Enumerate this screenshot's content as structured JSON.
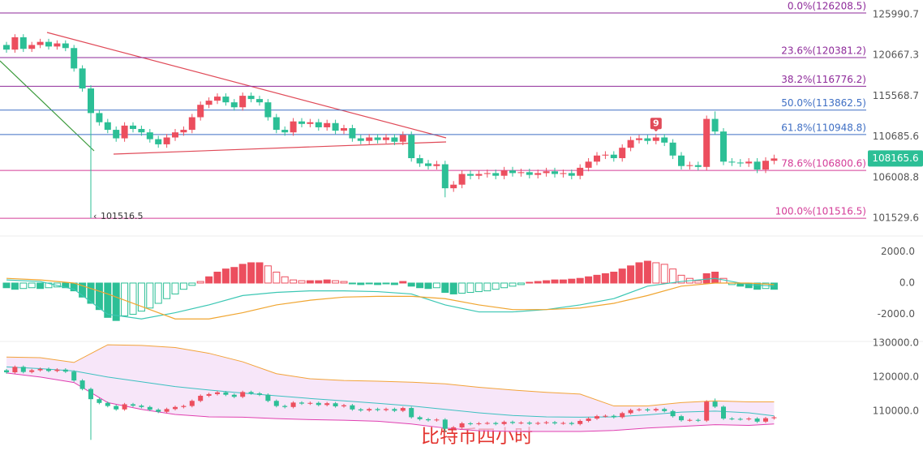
{
  "chart_data": [
    {
      "type": "candlestick",
      "log": true,
      "ylim": [
        99710,
        127960
      ],
      "yticks": [
        125990.7,
        120667.3,
        115568.7,
        110685.6,
        106008.8,
        101529.6
      ],
      "up_color": "#ec4e5e",
      "down_color": "#2cbf96",
      "open": [
        122000,
        121400,
        123000,
        121500,
        122000,
        122400,
        121800,
        122200,
        121600,
        119000,
        116500,
        113500,
        112400,
        111500,
        110500,
        112000,
        111600,
        111200,
        110400,
        109800,
        110600,
        111200,
        111500,
        113000,
        114500,
        115000,
        115500,
        114800,
        114200,
        115600,
        115200,
        114800,
        113000,
        111500,
        111200,
        112500,
        112200,
        112400,
        111800,
        112300,
        111400,
        111700,
        110500,
        110200,
        110600,
        110300,
        110600,
        110100,
        110900,
        108200,
        107600,
        107300,
        107500,
        104800,
        105200,
        106400,
        106200,
        106400,
        106500,
        106200,
        106800,
        106500,
        106600,
        106300,
        106500,
        106700,
        106400,
        106500,
        106200,
        107100,
        107800,
        108500,
        108600,
        108200,
        109400,
        110300,
        110500,
        110200,
        110600,
        110000,
        108500,
        107300,
        107400,
        107200,
        112800,
        111300,
        107800,
        107700,
        107600,
        107800,
        106900,
        107900
      ],
      "high": [
        122400,
        123400,
        123400,
        122400,
        122800,
        122800,
        122600,
        122600,
        122000,
        119400,
        116900,
        113900,
        112800,
        111900,
        112400,
        112400,
        112000,
        111600,
        110800,
        111000,
        111600,
        111900,
        113400,
        114900,
        115400,
        115900,
        115900,
        115200,
        116000,
        116000,
        115600,
        115200,
        113400,
        111900,
        112900,
        112900,
        112800,
        112800,
        112700,
        112700,
        112100,
        112100,
        110900,
        111000,
        111000,
        111000,
        111000,
        111300,
        111300,
        108600,
        108000,
        107900,
        107900,
        105600,
        106800,
        106800,
        106800,
        106900,
        106900,
        107200,
        107200,
        107000,
        107000,
        106900,
        107100,
        107100,
        106900,
        106900,
        107500,
        108200,
        108900,
        109000,
        109000,
        109800,
        110700,
        110900,
        110900,
        111000,
        111000,
        110400,
        108900,
        107800,
        107800,
        113200,
        113700,
        111700,
        108200,
        108100,
        108200,
        108200,
        108300,
        108600
      ],
      "low": [
        121000,
        121000,
        121100,
        121100,
        121600,
        121400,
        121400,
        121200,
        118600,
        116100,
        101516.5,
        112000,
        111100,
        110100,
        110100,
        111200,
        110800,
        110000,
        109400,
        109400,
        110200,
        110800,
        111100,
        112600,
        114100,
        114600,
        114400,
        113800,
        113800,
        114800,
        114400,
        112600,
        111100,
        110800,
        110800,
        111800,
        111800,
        111400,
        111400,
        111000,
        111000,
        110100,
        109800,
        109800,
        109900,
        109900,
        109700,
        109700,
        107800,
        107200,
        106900,
        106900,
        103800,
        104400,
        104800,
        105800,
        105800,
        106000,
        105800,
        105800,
        106100,
        106100,
        105900,
        105900,
        106100,
        106000,
        106000,
        105800,
        105800,
        106700,
        107400,
        108100,
        107800,
        107800,
        109000,
        109900,
        109800,
        109800,
        109600,
        108100,
        106900,
        106900,
        106800,
        106800,
        110900,
        107400,
        107300,
        107200,
        107200,
        106500,
        106500,
        107500
      ],
      "close": [
        121400,
        123000,
        121500,
        122000,
        122400,
        121800,
        122200,
        121600,
        119000,
        116500,
        113500,
        112400,
        111500,
        110500,
        112000,
        111600,
        111200,
        110400,
        109800,
        110600,
        111200,
        111500,
        113000,
        114500,
        115000,
        115500,
        114800,
        114200,
        115600,
        115200,
        114800,
        113000,
        111500,
        111200,
        112500,
        112200,
        112400,
        111800,
        112300,
        111400,
        111700,
        110500,
        110200,
        110600,
        110300,
        110600,
        110100,
        110900,
        108200,
        107600,
        107300,
        107500,
        104800,
        105200,
        106400,
        106200,
        106400,
        106500,
        106200,
        106800,
        106500,
        106600,
        106300,
        106500,
        106700,
        106400,
        106500,
        106200,
        107100,
        107800,
        108500,
        108600,
        108200,
        109400,
        110300,
        110500,
        110200,
        110600,
        110000,
        108500,
        107300,
        107400,
        107200,
        112800,
        111300,
        107800,
        107700,
        107600,
        107800,
        106900,
        107900,
        108165.6
      ],
      "fib_levels": [
        {
          "label": "0.0%(126208.5)",
          "value": 126208.5,
          "color": "#8e2a9a"
        },
        {
          "label": "23.6%(120381.2)",
          "value": 120381.2,
          "color": "#8e2a9a"
        },
        {
          "label": "38.2%(116776.2)",
          "value": 116776.2,
          "color": "#8e2a9a"
        },
        {
          "label": "50.0%(113862.5)",
          "value": 113862.5,
          "color": "#3f6fc4"
        },
        {
          "label": "61.8%(110948.8)",
          "value": 110948.8,
          "color": "#3f6fc4"
        },
        {
          "label": "78.6%(106800.6)",
          "value": 106800.6,
          "color": "#d43c98"
        },
        {
          "label": "100.0%(101516.5)",
          "value": 101516.5,
          "color": "#d43c98"
        }
      ],
      "signal": {
        "label": "9",
        "at": 77
      },
      "watermark": "比特币四小时"
    },
    {
      "type": "macd",
      "ylim": [
        -3690,
        2545
      ],
      "yticks": [
        {
          "value": 2000,
          "label": "2000.0"
        },
        {
          "value": 0,
          "label": "0.0"
        },
        {
          "value": -2000,
          "label": "-2000.0"
        }
      ],
      "hist": [
        -300,
        -400,
        -350,
        -300,
        -350,
        -300,
        -250,
        -300,
        -500,
        -900,
        -1300,
        -1700,
        -2200,
        -2400,
        -2100,
        -2000,
        -1800,
        -1600,
        -1300,
        -1000,
        -700,
        -400,
        -150,
        100,
        400,
        700,
        900,
        1000,
        1200,
        1300,
        1300,
        1100,
        700,
        400,
        200,
        150,
        150,
        150,
        200,
        150,
        100,
        -50,
        -100,
        -50,
        -100,
        -50,
        -100,
        100,
        -200,
        -300,
        -350,
        -300,
        -600,
        -700,
        -650,
        -600,
        -550,
        -500,
        -400,
        -300,
        -200,
        -100,
        50,
        100,
        150,
        200,
        200,
        250,
        300,
        400,
        500,
        600,
        700,
        900,
        1100,
        1300,
        1400,
        1300,
        1200,
        900,
        500,
        300,
        150,
        600,
        700,
        300,
        -100,
        -200,
        -300,
        -400,
        -350,
        -400
      ],
      "x": [
        0,
        4,
        8,
        12,
        16,
        20,
        24,
        28,
        32,
        36,
        40,
        44,
        48,
        52,
        56,
        60,
        64,
        68,
        72,
        76,
        80,
        84,
        88,
        91
      ],
      "dif": [
        200,
        100,
        -400,
        -2000,
        -2300,
        -1900,
        -1400,
        -800,
        -600,
        -500,
        -500,
        -550,
        -700,
        -1400,
        -1850,
        -1850,
        -1700,
        -1400,
        -1000,
        -200,
        100,
        300,
        -100,
        -200
      ],
      "dea": [
        300,
        200,
        0,
        -700,
        -1500,
        -2300,
        -2300,
        -1900,
        -1400,
        -1100,
        -900,
        -850,
        -850,
        -1000,
        -1400,
        -1700,
        -1700,
        -1600,
        -1300,
        -800,
        -200,
        0,
        0,
        -100
      ],
      "dif_color": "#3cc7b4",
      "dea_color": "#f0a530"
    },
    {
      "type": "bollinger",
      "ylim": [
        100900,
        128330
      ],
      "yticks": [
        {
          "value": 130000,
          "label": "130000.0"
        },
        {
          "value": 120000,
          "label": "120000.0"
        },
        {
          "value": 110000,
          "label": "110000.0"
        }
      ],
      "x": [
        0,
        4,
        8,
        12,
        16,
        20,
        24,
        28,
        32,
        36,
        40,
        44,
        48,
        52,
        56,
        60,
        64,
        68,
        72,
        76,
        80,
        84,
        88,
        91
      ],
      "upper": [
        125900,
        125700,
        124300,
        129500,
        129300,
        128700,
        127000,
        124500,
        121000,
        119500,
        119000,
        118800,
        118500,
        118000,
        117000,
        116200,
        115500,
        115000,
        111500,
        111500,
        112500,
        113000,
        112700,
        112700
      ],
      "middle": [
        123000,
        122500,
        121800,
        120000,
        118600,
        117200,
        116200,
        115300,
        114500,
        113700,
        113000,
        112300,
        111500,
        110500,
        109500,
        108700,
        108300,
        108200,
        108300,
        108900,
        109700,
        110000,
        109500,
        108600
      ],
      "lower": [
        121200,
        120000,
        118400,
        112500,
        110500,
        109000,
        108300,
        108200,
        107800,
        107500,
        107300,
        107000,
        106200,
        105000,
        104200,
        104000,
        104000,
        104000,
        104300,
        105000,
        105500,
        106000,
        105800,
        106200
      ],
      "upper_color": "#f2a33a",
      "middle_color": "#3cc0c0",
      "lower_color": "#e040b0",
      "fill": "#f3dcf6"
    }
  ]
}
